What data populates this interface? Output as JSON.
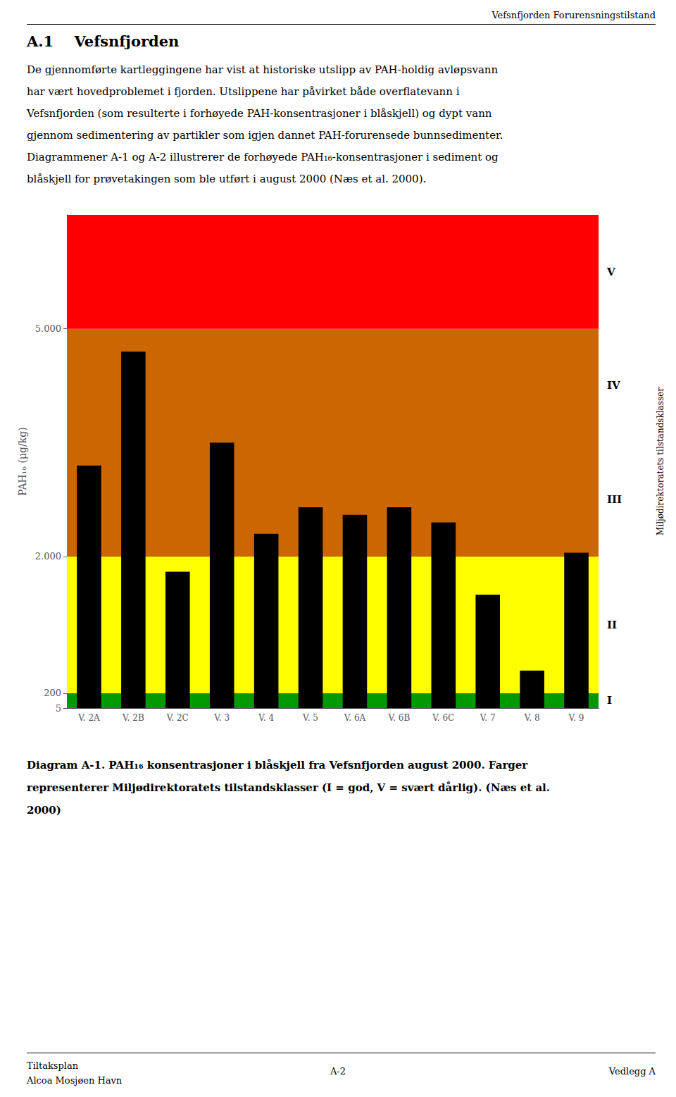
{
  "chart_data": {
    "type": "bar",
    "header": "Vefsnfjorden Forurensningstilstand",
    "section_title": "A.1    Vefsnfjorden",
    "paragraph": [
      "De gjennomførte kartleggingene har vist at historiske utslipp av PAH-holdig avløpsvann",
      "har vært hovedproblemet i fjorden. Utslippene har påvirket både overflatevann i",
      "Vefsnfjorden (som resulterte i forhøyede PAH-konsentrasjoner i blåskjell) og dypt vann",
      "gjennom sedimentering av partikler som igjen dannet PAH-forurensede bunnsedimenter.",
      "Diagrammener A-1 og A-2 illustrerer de forhøyede PAH₁₆-konsentrasjoner i sediment og",
      "blåskjell for prøvetakingen som ble utført i august 2000 (Næs et al. 2000)."
    ],
    "categories": [
      "V. 2A",
      "V. 2B",
      "V. 2C",
      "V. 3",
      "V. 4",
      "V. 5",
      "V. 6A",
      "V. 6B",
      "V. 6C",
      "V. 7",
      "V. 8",
      "V. 9"
    ],
    "values": [
      3200,
      4700,
      1800,
      3500,
      2300,
      2650,
      2550,
      2650,
      2450,
      1500,
      500,
      2050
    ],
    "color": "#000000",
    "ylabel": "PAH₁₆ (μg/kg)",
    "ylim": [
      5,
      6500
    ],
    "yticks": [
      5,
      200,
      {
        "value": 2000,
        "label": "2.000"
      },
      {
        "value": 5000,
        "label": "5.000"
      }
    ],
    "grid": false,
    "bands": [
      {
        "from": 5,
        "to": 200,
        "color": "#009900"
      },
      {
        "from": 200,
        "to": 2000,
        "color": "#ffff00"
      },
      {
        "from": 2000,
        "to": 5000,
        "color": "#cc6600"
      },
      {
        "from": 5000,
        "to": 6500,
        "color": "#ff0000"
      }
    ],
    "class_labels": [
      {
        "label": "I",
        "from": 5,
        "to": 200
      },
      {
        "label": "II",
        "from": 200,
        "to": 2000
      },
      {
        "label": "III",
        "from": 2000,
        "to": 3500
      },
      {
        "label": "IV",
        "from": 3500,
        "to": 5000
      },
      {
        "label": "V",
        "from": 5000,
        "to": 6500
      }
    ],
    "class_title": "Miljødirektoratets tilstandsklasser",
    "caption": [
      "Diagram A-1. PAH₁₆ konsentrasjoner i blåskjell fra Vefsnfjorden august 2000. Farger",
      "representerer Miljødirektoratets tilstandsklasser (I = god, V = svært dårlig). (Næs et al.",
      "2000)"
    ],
    "footer_left": [
      "Tiltaksplan",
      "Alcoa Mosjøen Havn"
    ],
    "footer_center": "A-2",
    "footer_right": "Vedlegg A"
  }
}
